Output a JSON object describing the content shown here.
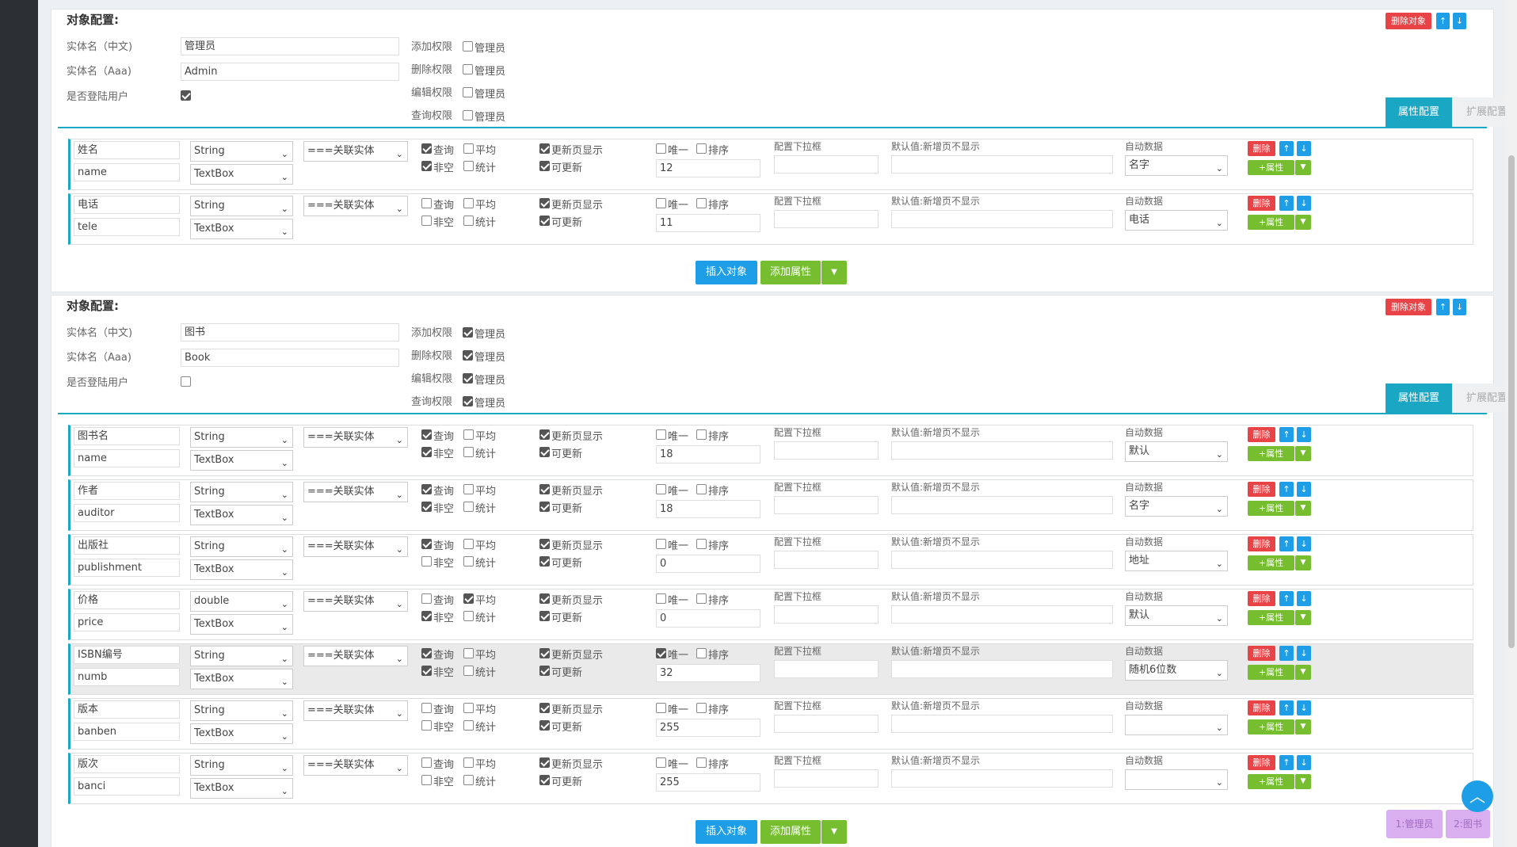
{
  "objects": [
    {
      "title": "对象配置:",
      "delete_label": "删除对象",
      "up_label": "↑",
      "down_label": "↓",
      "entity_cn_label": "实体名（中文)",
      "entity_cn_value": "管理员",
      "entity_en_label": "实体名（Aaa)",
      "entity_en_value": "Admin",
      "login_user_label": "是否登陆用户",
      "login_user_checked": true,
      "permissions": [
        {
          "label": "添加权限",
          "role": "管理员",
          "checked": false
        },
        {
          "label": "删除权限",
          "role": "管理员",
          "checked": false
        },
        {
          "label": "编辑权限",
          "role": "管理员",
          "checked": false
        },
        {
          "label": "查询权限",
          "role": "管理员",
          "checked": false
        }
      ],
      "tab_active": "属性配置",
      "tab_inactive": "扩展配置",
      "insert_label": "插入对象",
      "add_attr_label": "添加属性",
      "attributes": [
        {
          "cn": "姓名",
          "en": "name",
          "type": "String",
          "control": "TextBox",
          "relation": "===关联实体",
          "query": true,
          "avg": false,
          "notnull": true,
          "stat": false,
          "showupd": true,
          "updatable": true,
          "unique": false,
          "sort": false,
          "length": "12",
          "auto": "名字",
          "highlight": false
        },
        {
          "cn": "电话",
          "en": "tele",
          "type": "String",
          "control": "TextBox",
          "relation": "===关联实体",
          "query": false,
          "avg": false,
          "notnull": false,
          "stat": false,
          "showupd": true,
          "updatable": true,
          "unique": false,
          "sort": false,
          "length": "11",
          "auto": "电话",
          "highlight": false
        }
      ]
    },
    {
      "title": "对象配置:",
      "delete_label": "删除对象",
      "up_label": "↑",
      "down_label": "↓",
      "entity_cn_label": "实体名（中文)",
      "entity_cn_value": "图书",
      "entity_en_label": "实体名（Aaa)",
      "entity_en_value": "Book",
      "login_user_label": "是否登陆用户",
      "login_user_checked": false,
      "permissions": [
        {
          "label": "添加权限",
          "role": "管理员",
          "checked": true
        },
        {
          "label": "删除权限",
          "role": "管理员",
          "checked": true
        },
        {
          "label": "编辑权限",
          "role": "管理员",
          "checked": true
        },
        {
          "label": "查询权限",
          "role": "管理员",
          "checked": true
        }
      ],
      "tab_active": "属性配置",
      "tab_inactive": "扩展配置",
      "insert_label": "插入对象",
      "add_attr_label": "添加属性",
      "attributes": [
        {
          "cn": "图书名",
          "en": "name",
          "type": "String",
          "control": "TextBox",
          "relation": "===关联实体",
          "query": true,
          "avg": false,
          "notnull": true,
          "stat": false,
          "showupd": true,
          "updatable": true,
          "unique": false,
          "sort": false,
          "length": "18",
          "auto": "默认",
          "highlight": false
        },
        {
          "cn": "作者",
          "en": "auditor",
          "type": "String",
          "control": "TextBox",
          "relation": "===关联实体",
          "query": true,
          "avg": false,
          "notnull": true,
          "stat": false,
          "showupd": true,
          "updatable": true,
          "unique": false,
          "sort": false,
          "length": "18",
          "auto": "名字",
          "highlight": false
        },
        {
          "cn": "出版社",
          "en": "publishment",
          "type": "String",
          "control": "TextBox",
          "relation": "===关联实体",
          "query": true,
          "avg": false,
          "notnull": false,
          "stat": false,
          "showupd": true,
          "updatable": true,
          "unique": false,
          "sort": false,
          "length": "0",
          "auto": "地址",
          "highlight": false
        },
        {
          "cn": "价格",
          "en": "price",
          "type": "double",
          "control": "TextBox",
          "relation": "===关联实体",
          "query": false,
          "avg": true,
          "notnull": true,
          "stat": false,
          "showupd": true,
          "updatable": true,
          "unique": false,
          "sort": false,
          "length": "0",
          "auto": "默认",
          "highlight": false
        },
        {
          "cn": "ISBN编号",
          "en": "numb",
          "type": "String",
          "control": "TextBox",
          "relation": "===关联实体",
          "query": true,
          "avg": false,
          "notnull": true,
          "stat": false,
          "showupd": true,
          "updatable": true,
          "unique": true,
          "sort": false,
          "length": "32",
          "auto": "随机6位数",
          "highlight": true
        },
        {
          "cn": "版本",
          "en": "banben",
          "type": "String",
          "control": "TextBox",
          "relation": "===关联实体",
          "query": false,
          "avg": false,
          "notnull": false,
          "stat": false,
          "showupd": true,
          "updatable": true,
          "unique": false,
          "sort": false,
          "length": "255",
          "auto": "",
          "highlight": false
        },
        {
          "cn": "版次",
          "en": "banci",
          "type": "String",
          "control": "TextBox",
          "relation": "===关联实体",
          "query": false,
          "avg": false,
          "notnull": false,
          "stat": false,
          "showupd": true,
          "updatable": true,
          "unique": false,
          "sort": false,
          "length": "255",
          "auto": "",
          "highlight": false
        }
      ]
    }
  ],
  "row_labels": {
    "query": "查询",
    "avg": "平均",
    "notnull": "非空",
    "stat": "统计",
    "showupd": "更新页显示",
    "updatable": "可更新",
    "unique": "唯一",
    "sort": "排序",
    "dropdown": "配置下拉框",
    "default": "默认值:新增页不显示",
    "auto": "自动数据",
    "delete": "删除",
    "add_attr": "+属性",
    "caret": "▼",
    "up": "↑",
    "down": "↓"
  },
  "nav": {
    "item1": "1:管理员",
    "item2": "2:图书",
    "to_top": "︿"
  },
  "colors": {
    "accent": "#1aa7c4",
    "danger": "#e84347",
    "primary": "#1f9ee8",
    "success": "#76be30"
  }
}
